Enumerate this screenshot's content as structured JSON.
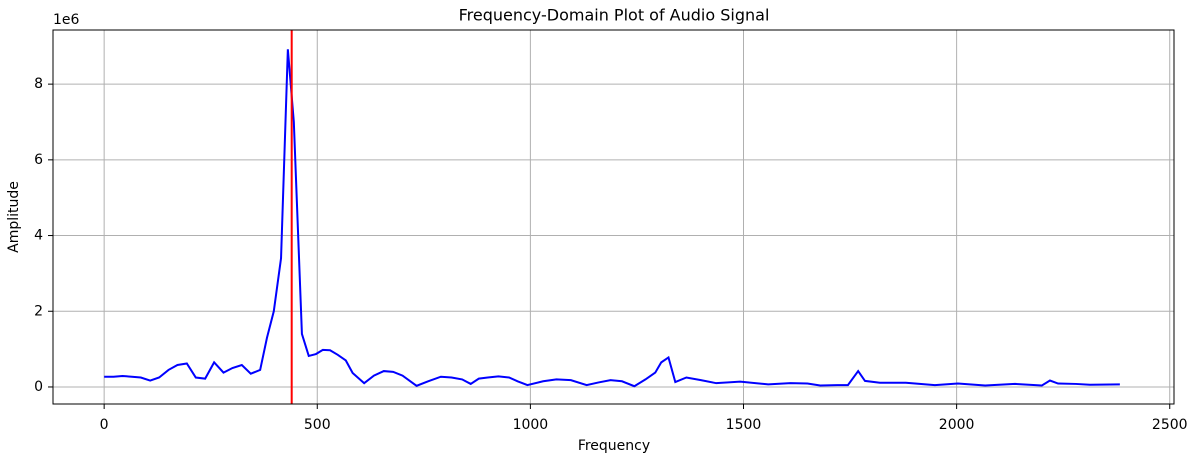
{
  "chart_data": {
    "type": "line",
    "title": "Frequency-Domain Plot of Audio Signal",
    "xlabel": "Frequency",
    "ylabel": "Amplitude",
    "y_offset_label": "1e6",
    "x": [
      0,
      22,
      43,
      65,
      86,
      108,
      129,
      151,
      172,
      194,
      215,
      237,
      258,
      280,
      301,
      323,
      344,
      366,
      382,
      398,
      415,
      431,
      445,
      464,
      480,
      497,
      513,
      530,
      548,
      567,
      583,
      610,
      633,
      656,
      678,
      700,
      733,
      760,
      790,
      815,
      840,
      860,
      879,
      900,
      925,
      950,
      970,
      993,
      1030,
      1061,
      1095,
      1132,
      1160,
      1188,
      1215,
      1244,
      1270,
      1293,
      1307,
      1324,
      1340,
      1366,
      1400,
      1436,
      1492,
      1558,
      1610,
      1650,
      1680,
      1720,
      1745,
      1769,
      1785,
      1820,
      1881,
      1949,
      2003,
      2067,
      2137,
      2200,
      2219,
      2238,
      2280,
      2313,
      2383
    ],
    "series": [
      {
        "name": "Amplitude",
        "color": "#0000ff",
        "values": [
          0.27,
          0.27,
          0.29,
          0.27,
          0.25,
          0.17,
          0.25,
          0.45,
          0.58,
          0.62,
          0.25,
          0.22,
          0.65,
          0.38,
          0.5,
          0.58,
          0.35,
          0.45,
          1.3,
          2.0,
          3.4,
          8.92,
          7.0,
          1.4,
          0.82,
          0.87,
          0.98,
          0.97,
          0.85,
          0.7,
          0.37,
          0.1,
          0.3,
          0.42,
          0.4,
          0.3,
          0.03,
          0.15,
          0.27,
          0.25,
          0.2,
          0.08,
          0.22,
          0.25,
          0.28,
          0.25,
          0.15,
          0.05,
          0.15,
          0.2,
          0.18,
          0.05,
          0.12,
          0.18,
          0.15,
          0.02,
          0.2,
          0.38,
          0.65,
          0.78,
          0.13,
          0.25,
          0.18,
          0.1,
          0.14,
          0.07,
          0.1,
          0.09,
          0.04,
          0.05,
          0.05,
          0.42,
          0.16,
          0.11,
          0.11,
          0.05,
          0.09,
          0.04,
          0.08,
          0.04,
          0.17,
          0.09,
          0.08,
          0.06,
          0.07
        ]
      }
    ],
    "vline": 440,
    "vline_color": "#ff0000",
    "xlim": [
      -120,
      2510
    ],
    "xticks": [
      0,
      500,
      1000,
      1500,
      2000,
      2500
    ],
    "ylim": [
      -0.45,
      9.43
    ],
    "yticks": [
      0,
      2,
      4,
      6,
      8
    ],
    "grid": true
  }
}
